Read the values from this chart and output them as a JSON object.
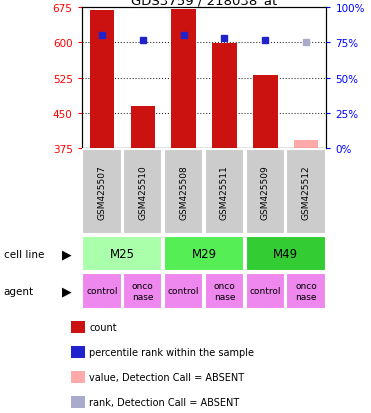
{
  "title": "GDS3759 / 218038_at",
  "samples": [
    "GSM425507",
    "GSM425510",
    "GSM425508",
    "GSM425511",
    "GSM425509",
    "GSM425512"
  ],
  "counts": [
    670,
    465,
    672,
    598,
    530,
    393
  ],
  "percentile_ranks": [
    80,
    77,
    80,
    78,
    77,
    75
  ],
  "absent": [
    false,
    false,
    false,
    false,
    false,
    true
  ],
  "ylim_left": [
    375,
    675
  ],
  "ylim_right": [
    0,
    100
  ],
  "yticks_left": [
    375,
    450,
    525,
    600,
    675
  ],
  "yticks_right": [
    0,
    25,
    50,
    75,
    100
  ],
  "bar_color": "#cc1111",
  "bar_absent_color": "#ffaaaa",
  "rank_color": "#2222cc",
  "rank_absent_color": "#aaaacc",
  "cell_lines": [
    [
      "M25",
      0,
      2
    ],
    [
      "M29",
      2,
      4
    ],
    [
      "M49",
      4,
      6
    ]
  ],
  "cell_line_colors": [
    "#aaffaa",
    "#55ee55",
    "#33cc33"
  ],
  "agent_labels": [
    "control",
    "onco\nnase",
    "control",
    "onco\nnase",
    "control",
    "onco\nnase"
  ],
  "agent_color": "#ee88ee",
  "sample_box_color": "#cccccc",
  "legend_items": [
    {
      "label": "count",
      "color": "#cc1111"
    },
    {
      "label": "percentile rank within the sample",
      "color": "#2222cc"
    },
    {
      "label": "value, Detection Call = ABSENT",
      "color": "#ffaaaa"
    },
    {
      "label": "rank, Detection Call = ABSENT",
      "color": "#aaaacc"
    }
  ]
}
